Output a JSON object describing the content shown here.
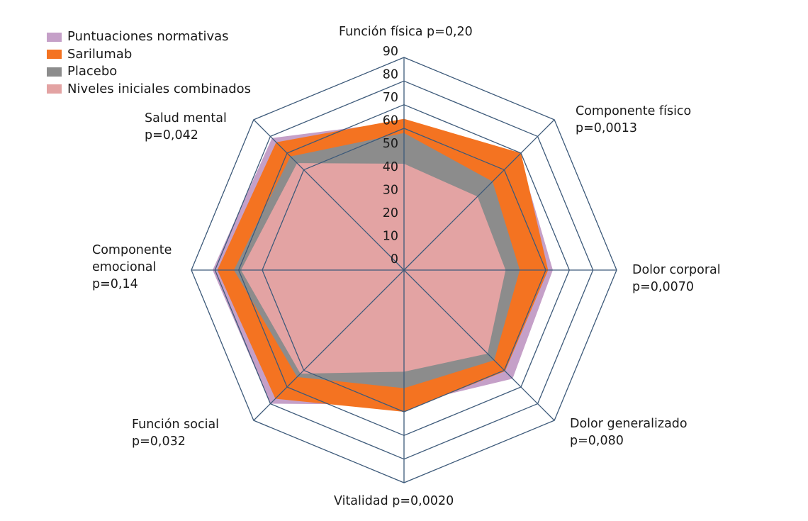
{
  "chart_data": {
    "type": "radar",
    "title": "",
    "axes": [
      {
        "name": "Función física",
        "p": "p=0,20"
      },
      {
        "name": "Componente físico",
        "p": "p=0,0013"
      },
      {
        "name": "Dolor corporal",
        "p": "p=0,0070"
      },
      {
        "name": "Dolor generalizado",
        "p": "p=0,080"
      },
      {
        "name": "Vitalidad",
        "p": "p=0,0020"
      },
      {
        "name": "Función social",
        "p": "p=0,032"
      },
      {
        "name": "Componente emocional",
        "p": "p=0,14"
      },
      {
        "name": "Salud mental",
        "p": "p=0,042"
      }
    ],
    "axis_labels": {
      "funcion_fisica": "Función física p=0,20",
      "componente_fisico_1": "Componente físico",
      "componente_fisico_2": "p=0,0013",
      "dolor_corporal_1": "Dolor corporal",
      "dolor_corporal_2": "p=0,0070",
      "dolor_generalizado_1": "Dolor generalizado",
      "dolor_generalizado_2": "p=0,080",
      "vitalidad": "Vitalidad p=0,0020",
      "funcion_social_1": "Función social",
      "funcion_social_2": "p=0,032",
      "componente_emocional_1": "Componente",
      "componente_emocional_2": "emocional",
      "componente_emocional_3": "p=0,14",
      "salud_mental_1": "Salud mental",
      "salud_mental_2": "p=0,042"
    },
    "radial_ticks": [
      "0",
      "10",
      "20",
      "30",
      "40",
      "50",
      "60",
      "70",
      "80",
      "90"
    ],
    "radial_range": [
      0,
      90
    ],
    "grid_rings": [
      60,
      70,
      80,
      90
    ],
    "legend_position": "top-left",
    "series": [
      {
        "name": "Puntuaciones normativas",
        "color": "#c5a0c8",
        "values": [
          63,
          69,
          63,
          65,
          57,
          80,
          81,
          79
        ]
      },
      {
        "name": "Sarilumab",
        "color": "#f47321",
        "values": [
          64,
          70,
          61,
          60.5,
          60,
          77,
          79,
          76.5
        ]
      },
      {
        "name": "Placebo",
        "color": "#8c8c8c",
        "values": [
          58,
          53,
          49,
          54,
          50,
          64,
          72,
          68
        ]
      },
      {
        "name": "Niveles iniciales combinados",
        "color": "#e3a3a3",
        "values": [
          45,
          44,
          43,
          50,
          43,
          62,
          69,
          64
        ]
      }
    ],
    "grid_color": "#3d5a7a"
  }
}
